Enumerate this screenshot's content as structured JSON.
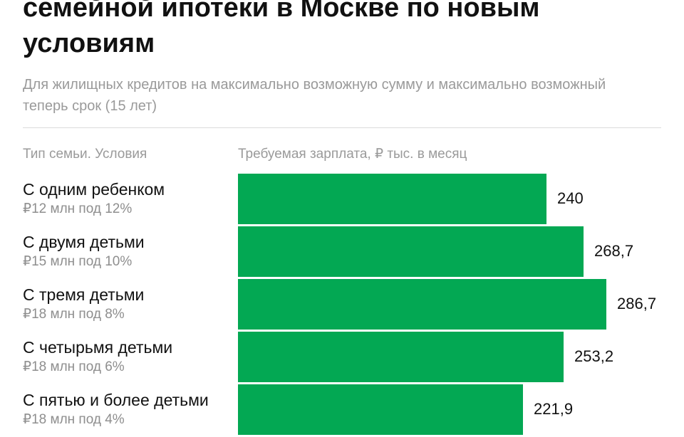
{
  "header": {
    "title": "семейной ипотеки в Москве по новым условиям",
    "subtitle": "Для жилищных кредитов на максимально возможную сумму и максимально возможный теперь срок (15 лет)"
  },
  "columns": {
    "left": "Тип семьи. Условия",
    "right": "Требуемая зарплата, ₽ тыс. в месяц"
  },
  "colors": {
    "bar": "#03a853"
  },
  "chart_data": {
    "type": "bar",
    "orientation": "horizontal",
    "categories": [
      "С одним ребенком",
      "С двумя детьми",
      "С тремя детьми",
      "С четырьмя детьми",
      "С пятью и более детьми"
    ],
    "category_sublabels": [
      "₽12 млн под 12%",
      "₽15 млн под 10%",
      "₽18 млн под 8%",
      "₽18 млн под 6%",
      "₽18 млн под 4%"
    ],
    "values": [
      240,
      268.7,
      286.7,
      253.2,
      221.9
    ],
    "value_labels": [
      "240",
      "268,7",
      "286,7",
      "253,2",
      "221,9"
    ],
    "title": "семейной ипотеки в Москве по новым условиям",
    "xlabel": "Требуемая зарплата, ₽ тыс. в месяц",
    "ylabel": "Тип семьи. Условия",
    "xlim": [
      0,
      286.7
    ],
    "grid": false,
    "legend": "none"
  }
}
